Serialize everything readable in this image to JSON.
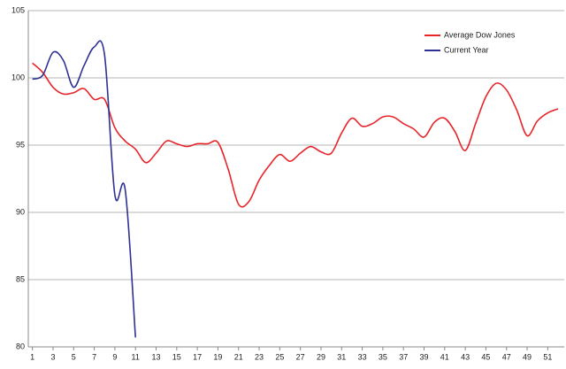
{
  "chart_data": {
    "type": "line",
    "x": [
      1,
      2,
      3,
      4,
      5,
      6,
      7,
      8,
      9,
      10,
      11,
      12,
      13,
      14,
      15,
      16,
      17,
      18,
      19,
      20,
      21,
      22,
      23,
      24,
      25,
      26,
      27,
      28,
      29,
      30,
      31,
      32,
      33,
      34,
      35,
      36,
      37,
      38,
      39,
      40,
      41,
      42,
      43,
      44,
      45,
      46,
      47,
      48,
      49,
      50,
      51,
      52
    ],
    "series": [
      {
        "name": "Average Dow Jones",
        "color": "#e8242a",
        "values": [
          101.1,
          100.4,
          99.3,
          98.8,
          98.9,
          99.2,
          98.4,
          98.4,
          96.3,
          95.3,
          94.7,
          93.7,
          94.4,
          95.3,
          95.1,
          94.9,
          95.1,
          95.1,
          95.2,
          93.2,
          90.6,
          90.8,
          92.4,
          93.5,
          94.3,
          93.8,
          94.4,
          94.9,
          94.5,
          94.4,
          95.9,
          97.0,
          96.4,
          96.6,
          97.1,
          97.1,
          96.6,
          96.2,
          95.6,
          96.7,
          97.0,
          96.0,
          94.6,
          96.6,
          98.6,
          99.6,
          99.1,
          97.6,
          95.7,
          96.8,
          97.4,
          97.7
        ]
      },
      {
        "name": "Current Year",
        "color": "#2e3192",
        "values": [
          99.9,
          100.2,
          101.9,
          101.3,
          99.3,
          100.9,
          102.3,
          101.7,
          91.3,
          91.7,
          80.7,
          null,
          null,
          null,
          null,
          null,
          null,
          null,
          null,
          null,
          null,
          null,
          null,
          null,
          null,
          null,
          null,
          null,
          null,
          null,
          null,
          null,
          null,
          null,
          null,
          null,
          null,
          null,
          null,
          null,
          null,
          null,
          null,
          null,
          null,
          null,
          null,
          null,
          null,
          null,
          null,
          null
        ]
      }
    ],
    "xlim": [
      0.6,
      52.6
    ],
    "xticks": [
      1,
      3,
      5,
      7,
      9,
      11,
      13,
      15,
      17,
      19,
      21,
      23,
      25,
      27,
      29,
      31,
      33,
      35,
      37,
      39,
      41,
      43,
      45,
      47,
      49,
      51
    ],
    "ylim": [
      80,
      105
    ],
    "yticks": [
      80,
      85,
      90,
      95,
      100,
      105
    ],
    "grid": true,
    "legend": "top-right"
  }
}
